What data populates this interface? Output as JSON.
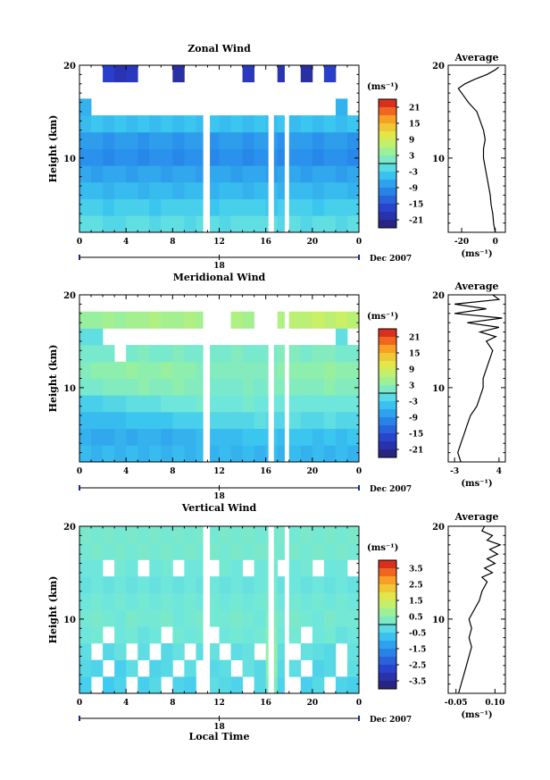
{
  "chart_data": [
    {
      "type": "heatmap",
      "title": "Zonal Wind",
      "ylabel": "Height (km)",
      "ylim": [
        2,
        20
      ],
      "yticks": [
        10,
        20
      ],
      "x_ticks": [
        "0",
        "4",
        "8",
        "12",
        "16",
        "20",
        "0"
      ],
      "date_marker": "18",
      "date_label": "Dec 2007",
      "colorbar": {
        "unit": "(ms⁻¹)",
        "ticks": [
          "21",
          "15",
          "9",
          "3",
          "-3",
          "-9",
          "-15",
          "-21"
        ],
        "range": [
          -24,
          24
        ]
      },
      "profile": {
        "title": "Average",
        "xlabel": "(ms⁻¹)",
        "xticks": [
          "-20",
          "0"
        ],
        "xlim": [
          -28,
          6
        ],
        "points": [
          [
            0,
            2
          ],
          [
            -1,
            3
          ],
          [
            -1.5,
            4
          ],
          [
            -2.5,
            5
          ],
          [
            -3,
            6
          ],
          [
            -4,
            7
          ],
          [
            -5,
            8
          ],
          [
            -6,
            9
          ],
          [
            -7,
            10
          ],
          [
            -7,
            11
          ],
          [
            -6,
            12
          ],
          [
            -7,
            13
          ],
          [
            -9,
            14
          ],
          [
            -11,
            15
          ],
          [
            -16,
            16
          ],
          [
            -20,
            17
          ],
          [
            -22,
            17.5
          ],
          [
            -18,
            18
          ],
          [
            -12,
            18.5
          ],
          [
            -5,
            19
          ],
          [
            0,
            19.5
          ],
          [
            2,
            19.8
          ]
        ]
      },
      "gaps": [
        [
          10.6,
          11.2
        ],
        [
          16.2,
          16.7
        ],
        [
          17.6,
          18.0
        ]
      ],
      "values": [
        [
          -1,
          -1,
          -2,
          -2,
          -1,
          -1,
          -2,
          -1,
          -1,
          -2,
          -1,
          -1,
          -2,
          -1,
          -1,
          -1,
          -1,
          -2,
          -1,
          -2,
          -1,
          -1,
          -2,
          -1
        ],
        [
          -3,
          -3,
          -4,
          -3,
          -3,
          -3,
          -4,
          -3,
          -3,
          -3,
          -3,
          -4,
          -3,
          -3,
          -3,
          -3,
          -4,
          -3,
          -3,
          -3,
          -4,
          -3,
          -3,
          -3
        ],
        [
          -5,
          -5,
          -6,
          -5,
          -5,
          -6,
          -5,
          -5,
          -6,
          -5,
          -5,
          -6,
          -5,
          -5,
          -6,
          -5,
          -5,
          -6,
          -5,
          -5,
          -6,
          -5,
          -5,
          -6
        ],
        [
          -7,
          -8,
          -7,
          -7,
          -8,
          -7,
          -7,
          -8,
          -7,
          -7,
          -8,
          -7,
          -7,
          -8,
          -7,
          -7,
          -8,
          -7,
          -7,
          -8,
          -7,
          -7,
          -8,
          -7
        ],
        [
          -9,
          -9,
          -10,
          -9,
          -9,
          -10,
          -9,
          -9,
          -10,
          -9,
          -9,
          -10,
          -9,
          -9,
          -10,
          -9,
          -9,
          -10,
          -9,
          -9,
          -10,
          -9,
          -9,
          -10
        ],
        [
          -8,
          -8,
          -9,
          -8,
          -8,
          -9,
          -8,
          -8,
          -9,
          -8,
          -8,
          -9,
          -8,
          -8,
          -9,
          -8,
          -8,
          -9,
          -8,
          -8,
          -9,
          -8,
          -8,
          -9
        ],
        [
          -5,
          -4,
          -5,
          -4,
          -5,
          -4,
          -5,
          -4,
          -5,
          -4,
          -5,
          -4,
          -5,
          -4,
          -5,
          -4,
          -5,
          -4,
          -5,
          -4,
          -5,
          -4,
          -5,
          -4
        ],
        [
          -6,
          null,
          null,
          null,
          null,
          null,
          null,
          null,
          null,
          null,
          null,
          null,
          null,
          null,
          null,
          null,
          null,
          null,
          null,
          null,
          null,
          null,
          -6,
          null
        ],
        [
          null,
          null,
          null,
          null,
          null,
          null,
          null,
          null,
          null,
          null,
          null,
          null,
          null,
          null,
          null,
          null,
          null,
          null,
          null,
          null,
          null,
          null,
          null,
          null
        ],
        [
          null,
          null,
          -17,
          -19,
          -18,
          null,
          null,
          null,
          -20,
          null,
          null,
          null,
          null,
          null,
          -18,
          null,
          null,
          -19,
          null,
          -20,
          null,
          -17,
          null,
          null
        ]
      ]
    },
    {
      "type": "heatmap",
      "title": "Meridional Wind",
      "ylabel": "Height (km)",
      "ylim": [
        2,
        20
      ],
      "yticks": [
        10,
        20
      ],
      "x_ticks": [
        "0",
        "4",
        "8",
        "12",
        "16",
        "20",
        "0"
      ],
      "date_marker": "18",
      "date_label": "Dec 2007",
      "colorbar": {
        "unit": "(ms⁻¹)",
        "ticks": [
          "21",
          "15",
          "9",
          "3",
          "-3",
          "-9",
          "-15",
          "-21"
        ],
        "range": [
          -24,
          24
        ]
      },
      "profile": {
        "title": "Average",
        "xlabel": "(ms⁻¹)",
        "xticks": [
          "-3",
          "4"
        ],
        "xlim": [
          -4,
          5
        ],
        "points": [
          [
            -2,
            2
          ],
          [
            -2.5,
            3
          ],
          [
            -2,
            4
          ],
          [
            -1.5,
            5
          ],
          [
            -1,
            6
          ],
          [
            -0.5,
            7
          ],
          [
            0.5,
            8
          ],
          [
            1,
            9
          ],
          [
            1.5,
            10
          ],
          [
            1.5,
            11
          ],
          [
            2,
            12
          ],
          [
            2.5,
            13
          ],
          [
            3,
            14
          ],
          [
            2,
            15
          ],
          [
            3.5,
            15.5
          ],
          [
            1,
            16
          ],
          [
            4,
            16.5
          ],
          [
            -1,
            17
          ],
          [
            4.5,
            17.5
          ],
          [
            -3,
            18
          ],
          [
            2,
            18.5
          ],
          [
            -3,
            19
          ],
          [
            4,
            19.5
          ],
          [
            3,
            20
          ]
        ]
      },
      "gaps": [
        [
          10.6,
          11.2
        ],
        [
          16.2,
          16.7
        ],
        [
          17.6,
          18.0
        ]
      ],
      "values": [
        [
          -5,
          -6,
          -5,
          -6,
          -5,
          -6,
          -5,
          -6,
          -5,
          -6,
          -5,
          -6,
          -5,
          -6,
          -5,
          -6,
          -5,
          -6,
          -5,
          -6,
          -5,
          -6,
          -5,
          -6
        ],
        [
          -6,
          -7,
          -7,
          -6,
          -7,
          -6,
          -6,
          -7,
          -6,
          -6,
          -5,
          -5,
          -5,
          -5,
          -4,
          -4,
          -4,
          -5,
          -4,
          -4,
          -5,
          -4,
          -5,
          -4
        ],
        [
          -5,
          -5,
          -5,
          -5,
          -4,
          -4,
          -4,
          -4,
          -3,
          -3,
          -3,
          -2,
          -2,
          -2,
          -2,
          -1,
          -2,
          -2,
          -1,
          -2,
          -2,
          -1,
          -2,
          -2
        ],
        [
          -3,
          -3,
          -2,
          -2,
          -1,
          -1,
          -1,
          0,
          0,
          0,
          1,
          0,
          0,
          0,
          1,
          0,
          0,
          0,
          0,
          0,
          0,
          0,
          0,
          0
        ],
        [
          1,
          1,
          2,
          2,
          2,
          3,
          2,
          2,
          3,
          2,
          2,
          1,
          1,
          1,
          2,
          1,
          2,
          2,
          2,
          2,
          2,
          3,
          2,
          2
        ],
        [
          2,
          3,
          3,
          3,
          4,
          3,
          3,
          4,
          3,
          3,
          2,
          2,
          2,
          2,
          2,
          2,
          2,
          3,
          3,
          3,
          3,
          4,
          3,
          3
        ],
        [
          1,
          1,
          1,
          null,
          1,
          2,
          1,
          1,
          2,
          1,
          1,
          1,
          1,
          2,
          1,
          1,
          1,
          2,
          2,
          1,
          2,
          2,
          1,
          1
        ],
        [
          -1,
          -1,
          null,
          null,
          null,
          null,
          null,
          null,
          null,
          null,
          null,
          null,
          null,
          null,
          null,
          null,
          null,
          null,
          null,
          null,
          null,
          null,
          -1,
          null
        ],
        [
          4,
          4,
          5,
          4,
          5,
          5,
          6,
          5,
          5,
          6,
          5,
          null,
          null,
          6,
          5,
          null,
          null,
          6,
          7,
          7,
          8,
          7,
          8,
          7
        ],
        [
          null,
          null,
          null,
          null,
          null,
          null,
          null,
          null,
          null,
          null,
          null,
          null,
          null,
          null,
          null,
          null,
          null,
          null,
          null,
          null,
          null,
          null,
          null,
          null
        ]
      ]
    },
    {
      "type": "heatmap",
      "title": "Vertical Wind",
      "ylabel": "Height (km)",
      "ylim": [
        2,
        20
      ],
      "yticks": [
        10,
        20
      ],
      "x_ticks": [
        "0",
        "4",
        "8",
        "12",
        "16",
        "20",
        "0"
      ],
      "date_marker": "18",
      "date_label": "Dec 2007",
      "xlabel": "Local Time",
      "colorbar": {
        "unit": "(ms⁻¹)",
        "ticks": [
          "3.5",
          "2.5",
          "1.5",
          "0.5",
          "-0.5",
          "-1.5",
          "-2.5",
          "-3.5"
        ],
        "range": [
          -4,
          4
        ]
      },
      "profile": {
        "title": "Average",
        "xlabel": "(ms⁻¹)",
        "xticks": [
          "-0.05",
          "0.10"
        ],
        "xlim": [
          -0.08,
          0.14
        ],
        "points": [
          [
            -0.04,
            2
          ],
          [
            -0.03,
            3
          ],
          [
            -0.02,
            4
          ],
          [
            -0.01,
            5
          ],
          [
            0.0,
            6
          ],
          [
            0.01,
            7
          ],
          [
            0.0,
            8
          ],
          [
            0.01,
            9
          ],
          [
            0.0,
            10
          ],
          [
            0.02,
            11
          ],
          [
            0.04,
            12
          ],
          [
            0.05,
            13
          ],
          [
            0.07,
            14
          ],
          [
            0.05,
            14.5
          ],
          [
            0.09,
            15
          ],
          [
            0.06,
            15.5
          ],
          [
            0.1,
            16
          ],
          [
            0.07,
            16.5
          ],
          [
            0.11,
            17
          ],
          [
            0.08,
            17.5
          ],
          [
            0.12,
            18
          ],
          [
            0.07,
            18.5
          ],
          [
            0.09,
            19
          ],
          [
            0.05,
            19.5
          ],
          [
            0.06,
            20
          ]
        ]
      },
      "gaps": [
        [
          10.6,
          11.2
        ],
        [
          16.2,
          16.7
        ],
        [
          17.6,
          18.0
        ]
      ],
      "values": [
        [
          -0.5,
          null,
          -0.6,
          -0.4,
          null,
          -0.5,
          -0.3,
          null,
          -0.4,
          -0.5,
          null,
          -0.2,
          -0.3,
          -0.4,
          null,
          -0.3,
          0.3,
          -0.4,
          null,
          -0.5,
          -0.3,
          null,
          -0.4,
          -0.5
        ],
        [
          -0.3,
          -0.4,
          null,
          -0.5,
          -0.2,
          null,
          -0.4,
          -0.3,
          null,
          -0.2,
          null,
          -0.3,
          -0.2,
          null,
          -0.1,
          -0.3,
          0.5,
          -0.3,
          -0.2,
          null,
          -0.4,
          -0.3,
          null,
          -0.2
        ],
        [
          -0.2,
          null,
          -0.3,
          -0.1,
          null,
          -0.2,
          null,
          -0.3,
          -0.1,
          null,
          -0.2,
          -0.1,
          null,
          -0.2,
          -0.1,
          null,
          0.6,
          -0.2,
          null,
          -0.1,
          -0.2,
          -0.3,
          null,
          -0.1
        ],
        [
          0.0,
          0.1,
          null,
          0.0,
          0.1,
          -0.1,
          0.0,
          null,
          0.1,
          0.0,
          0.1,
          null,
          0.0,
          0.1,
          0.0,
          0.1,
          0.4,
          0.0,
          0.1,
          null,
          0.0,
          0.1,
          -0.1,
          0.0
        ],
        [
          0.1,
          0.2,
          0.1,
          0.0,
          0.2,
          0.1,
          0.1,
          0.2,
          0.0,
          0.1,
          0.2,
          0.1,
          0.1,
          0.2,
          0.1,
          0.0,
          0.3,
          0.1,
          0.2,
          0.1,
          0.0,
          0.2,
          0.1,
          0.1
        ],
        [
          0.0,
          0.1,
          0.0,
          0.1,
          0.0,
          0.1,
          0.0,
          0.1,
          0.0,
          0.1,
          0.0,
          0.1,
          0.0,
          0.1,
          0.0,
          0.1,
          0.2,
          0.0,
          0.1,
          0.0,
          0.1,
          0.0,
          0.1,
          0.0
        ],
        [
          -0.1,
          0.0,
          -0.1,
          0.0,
          -0.1,
          0.0,
          -0.1,
          0.0,
          -0.1,
          0.0,
          -0.1,
          0.0,
          -0.1,
          0.0,
          -0.1,
          0.0,
          0.1,
          -0.1,
          0.0,
          -0.1,
          0.0,
          -0.1,
          0.0,
          -0.1
        ],
        [
          0.0,
          0.0,
          null,
          0.1,
          0.0,
          null,
          0.0,
          0.1,
          null,
          0.0,
          0.0,
          null,
          0.1,
          0.0,
          null,
          0.0,
          0.1,
          null,
          0.0,
          0.1,
          null,
          0.0,
          0.0,
          null
        ],
        [
          0.1,
          0.2,
          0.1,
          0.2,
          0.1,
          0.2,
          0.1,
          0.2,
          0.1,
          0.2,
          0.1,
          0.2,
          0.1,
          0.2,
          0.1,
          0.2,
          0.2,
          0.1,
          0.2,
          0.1,
          0.2,
          0.1,
          0.2,
          0.1
        ],
        [
          0.2,
          0.1,
          0.2,
          0.1,
          0.2,
          0.1,
          0.2,
          0.1,
          0.2,
          0.1,
          0.2,
          0.1,
          0.2,
          0.1,
          0.2,
          0.1,
          0.1,
          0.2,
          0.1,
          0.2,
          0.1,
          0.2,
          0.1,
          0.2
        ]
      ]
    }
  ]
}
